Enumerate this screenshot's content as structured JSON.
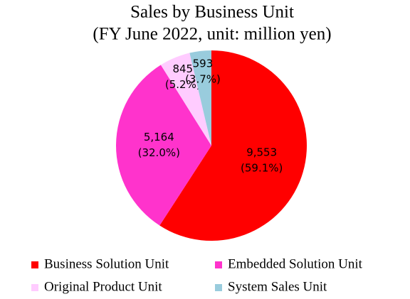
{
  "chart_data": {
    "type": "pie",
    "title": "Sales by Business Unit",
    "subtitle": "(FY June 2022, unit: million yen)",
    "categories": [
      "Business Solution Unit",
      "Embedded Solution Unit",
      "Original Product Unit",
      "System Sales Unit"
    ],
    "values": [
      9553,
      5164,
      845,
      593
    ],
    "value_labels": [
      "9,553",
      "5,164",
      "845",
      "593"
    ],
    "percents": [
      59.1,
      32.0,
      5.2,
      3.7
    ],
    "percent_labels": [
      "(59.1%)",
      "(32.0%)",
      "(5.2%)",
      "(3.7%)"
    ],
    "colors": [
      "#ff0000",
      "#ff33cc",
      "#ffccff",
      "#99ccdd"
    ]
  }
}
